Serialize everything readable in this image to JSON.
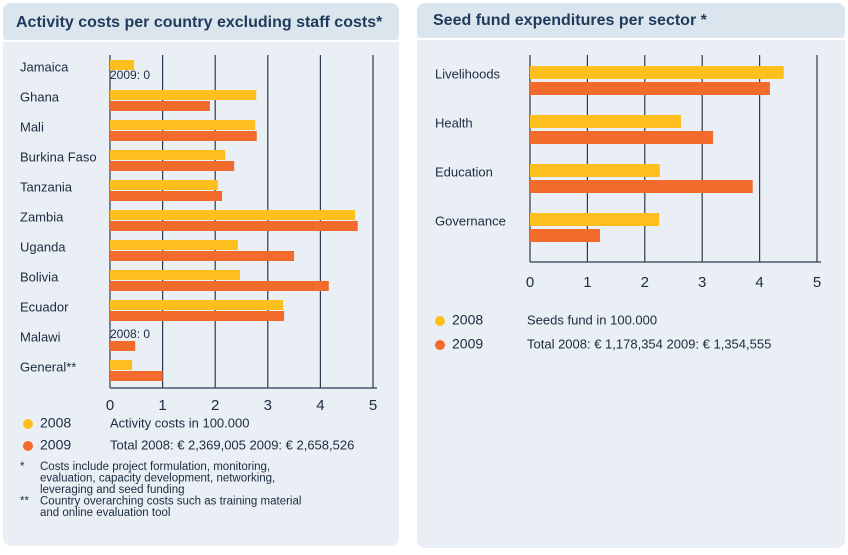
{
  "chart_data": [
    {
      "type": "bar",
      "orientation": "horizontal",
      "title": "Activity costs per country excluding staff costs*",
      "categories": [
        "Jamaica",
        "Ghana",
        "Mali",
        "Burkina Faso",
        "Tanzania",
        "Zambia",
        "Uganda",
        "Bolivia",
        "Ecuador",
        "Malawi",
        "General**"
      ],
      "series": [
        {
          "name": "2008",
          "color": "#fcbf1e",
          "values": [
            0.46,
            2.78,
            2.76,
            2.19,
            2.05,
            4.66,
            2.43,
            2.47,
            3.29,
            0,
            0.42
          ],
          "value_labels": [
            null,
            null,
            null,
            null,
            null,
            null,
            null,
            null,
            null,
            "2008: 0",
            null
          ]
        },
        {
          "name": "2009",
          "color": "#f26b2c",
          "values": [
            0,
            1.9,
            2.79,
            2.36,
            2.13,
            4.71,
            3.5,
            4.16,
            3.31,
            0.48,
            1.0
          ],
          "value_labels": [
            "2009: 0",
            null,
            null,
            null,
            null,
            null,
            null,
            null,
            null,
            null,
            null
          ]
        }
      ],
      "xlim": [
        0,
        5
      ],
      "xticks": [
        0,
        1,
        2,
        3,
        4,
        5
      ],
      "grid": true,
      "unit_note": "Activity costs in 100.000",
      "total_note": "Total 2008: € 2,369,005 2009: € 2,658,526",
      "footnotes": [
        {
          "mark": "*",
          "lines": [
            "Costs include project formulation, monitoring,",
            "evaluation, capacity development, networking,",
            "leveraging and seed funding"
          ]
        },
        {
          "mark": "**",
          "lines": [
            "Country overarching costs such as training material",
            "and online evaluation tool"
          ]
        }
      ]
    },
    {
      "type": "bar",
      "orientation": "horizontal",
      "title": "Seed fund expenditures per sector *",
      "categories": [
        "Livelihoods",
        "Health",
        "Education",
        "Governance"
      ],
      "series": [
        {
          "name": "2008",
          "color": "#fcbf1e",
          "values": [
            4.42,
            2.63,
            2.26,
            2.25
          ]
        },
        {
          "name": "2009",
          "color": "#f26b2c",
          "values": [
            4.18,
            3.19,
            3.88,
            1.22
          ]
        }
      ],
      "xlim": [
        0,
        5
      ],
      "xticks": [
        0,
        1,
        2,
        3,
        4,
        5
      ],
      "grid": true,
      "unit_note": "Seeds fund in 100.000",
      "total_note": "Total 2008: € 1,178,354 2009: € 1,354,555"
    }
  ]
}
